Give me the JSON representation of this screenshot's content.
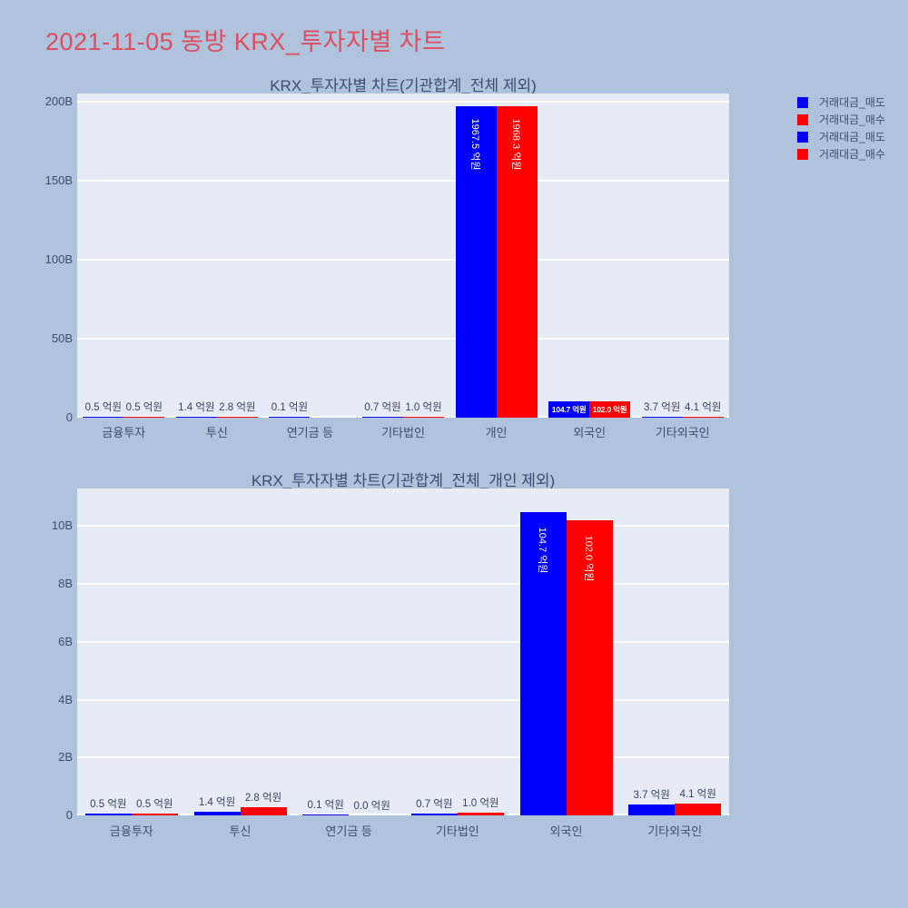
{
  "page_title": "2021-11-05 동방 KRX_투자자별 차트",
  "colors": {
    "background": "#afc3dd",
    "plot_background": "#e7ebf6",
    "gridline": "#ffffff",
    "sell_bar": "#0000ff",
    "buy_bar": "#ff0000",
    "page_title": "#df4e5f",
    "axis_text": "#3c4e6f",
    "value_label_text": "#36425c",
    "inside_label_text": "#ffffff"
  },
  "legend": {
    "items": [
      {
        "label": "거래대금_매도",
        "color": "#0000ff"
      },
      {
        "label": "거래대금_매수",
        "color": "#ff0000"
      },
      {
        "label": "거래대금_매도",
        "color": "#0000ff"
      },
      {
        "label": "거래대금_매수",
        "color": "#ff0000"
      }
    ]
  },
  "chart_data": [
    {
      "type": "bar",
      "title": "KRX_투자자별 차트(기관합계_전체 제외)",
      "unit": "억원",
      "categories": [
        "금융투자",
        "투신",
        "연기금 등",
        "기타법인",
        "개인",
        "외국인",
        "기타외국인"
      ],
      "series": [
        {
          "name": "거래대금_매도",
          "color": "#0000ff",
          "values_eokwon": [
            0.5,
            1.4,
            0.1,
            0.7,
            1967.5,
            104.7,
            3.7
          ],
          "labels": [
            "0.5 억원",
            "1.4 억원",
            "0.1 억원",
            "0.7 억원",
            "1967.5 억원",
            "104.7 억원",
            "3.7 억원"
          ]
        },
        {
          "name": "거래대금_매수",
          "color": "#ff0000",
          "values_eokwon": [
            0.5,
            2.8,
            0.0,
            1.0,
            1968.3,
            102.0,
            4.1
          ],
          "labels": [
            "0.5 억원",
            "2.8 억원",
            "",
            "1.0 억원",
            "1968.3 억원",
            "102.0 억원",
            "4.1 억원"
          ]
        }
      ],
      "label_mode": [
        "outside",
        "outside",
        "outside",
        "outside",
        "inside-vertical",
        "inside-horizontal",
        "outside"
      ],
      "yticks": [
        {
          "label": "0",
          "value_B": 0
        },
        {
          "label": "50B",
          "value_B": 50
        },
        {
          "label": "100B",
          "value_B": 100
        },
        {
          "label": "150B",
          "value_B": 150
        },
        {
          "label": "200B",
          "value_B": 200
        }
      ],
      "ylim_B": [
        0,
        205
      ],
      "grid": true,
      "legend_position": "top-right"
    },
    {
      "type": "bar",
      "title": "KRX_투자자별 차트(기관합계_전체_개인 제외)",
      "unit": "억원",
      "categories": [
        "금융투자",
        "투신",
        "연기금 등",
        "기타법인",
        "외국인",
        "기타외국인"
      ],
      "series": [
        {
          "name": "거래대금_매도",
          "color": "#0000ff",
          "values_eokwon": [
            0.5,
            1.4,
            0.1,
            0.7,
            104.7,
            3.7
          ],
          "labels": [
            "0.5 억원",
            "1.4 억원",
            "0.1 억원",
            "0.7 억원",
            "104.7 억원",
            "3.7 억원"
          ]
        },
        {
          "name": "거래대금_매수",
          "color": "#ff0000",
          "values_eokwon": [
            0.5,
            2.8,
            0.0,
            1.0,
            102.0,
            4.1
          ],
          "labels": [
            "0.5 억원",
            "2.8 억원",
            "0.0 억원",
            "1.0 억원",
            "102.0 억원",
            "4.1 억원"
          ]
        }
      ],
      "label_mode": [
        "outside",
        "outside",
        "outside",
        "outside",
        "inside-vertical",
        "outside"
      ],
      "yticks": [
        {
          "label": "0",
          "value_B": 0
        },
        {
          "label": "2B",
          "value_B": 2
        },
        {
          "label": "4B",
          "value_B": 4
        },
        {
          "label": "6B",
          "value_B": 6
        },
        {
          "label": "8B",
          "value_B": 8
        },
        {
          "label": "10B",
          "value_B": 10
        }
      ],
      "ylim_B": [
        0,
        11.3
      ],
      "grid": true,
      "legend_position": "top-right"
    }
  ]
}
